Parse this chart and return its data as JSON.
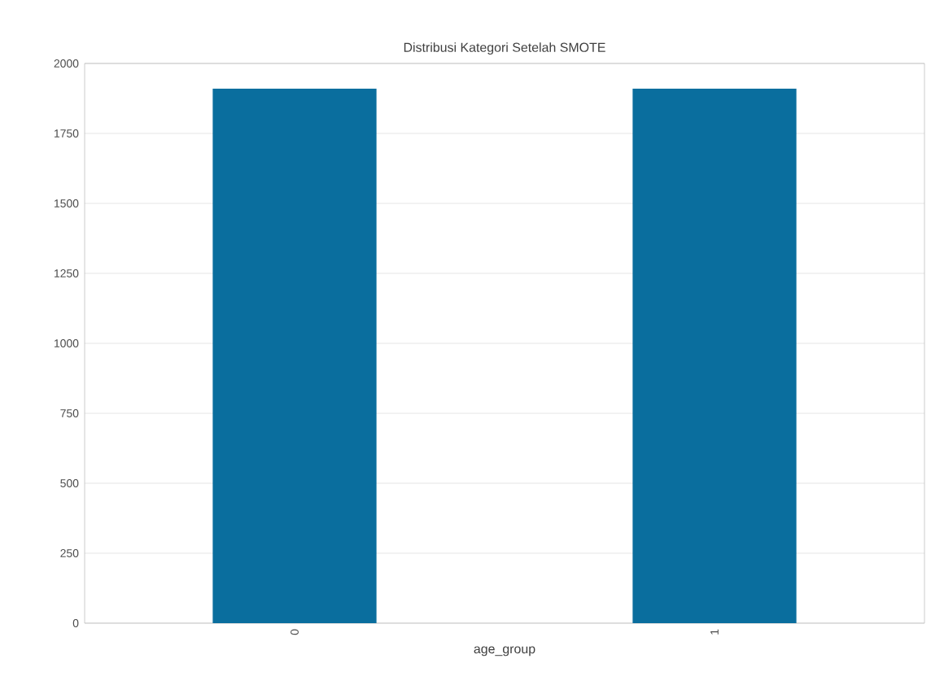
{
  "chart_data": {
    "type": "bar",
    "title": "Distribusi Kategori Setelah SMOTE",
    "xlabel": "age_group",
    "categories": [
      "0",
      "1"
    ],
    "values": [
      1910,
      1910
    ],
    "color": "#0a6e9e",
    "ylim": [
      0,
      2000
    ],
    "yticks": [
      0,
      250,
      500,
      750,
      1000,
      1250,
      1500,
      1750,
      2000
    ],
    "grid": "y"
  }
}
